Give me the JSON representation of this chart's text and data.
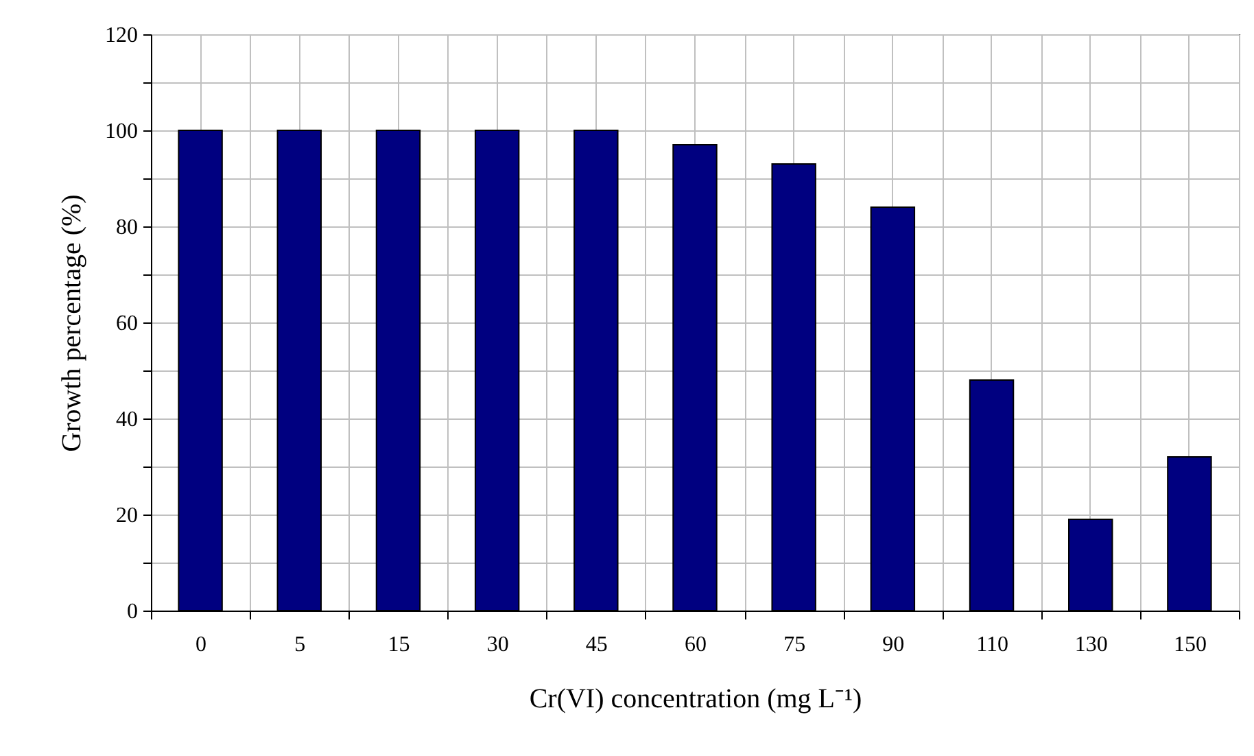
{
  "chart_data": {
    "type": "bar",
    "xlabel": "Cr(VI) concentration (mg L⁻¹)",
    "ylabel": "Growth percentage (%)",
    "categories": [
      "0",
      "5",
      "15",
      "30",
      "45",
      "60",
      "75",
      "90",
      "110",
      "130",
      "150"
    ],
    "values": [
      100,
      100,
      100,
      100,
      100,
      97,
      93,
      84,
      48,
      19,
      32
    ],
    "color": "#000080",
    "ylim": [
      0,
      120
    ],
    "yticks": [
      0,
      {
        "value": 10,
        "label": null
      },
      20,
      {
        "value": 30,
        "label": null
      },
      40,
      {
        "value": 50,
        "label": null
      },
      60,
      {
        "value": 70,
        "label": null
      },
      80,
      {
        "value": 90,
        "label": null
      },
      100,
      {
        "value": 110,
        "label": null
      },
      120
    ],
    "grid": true
  }
}
